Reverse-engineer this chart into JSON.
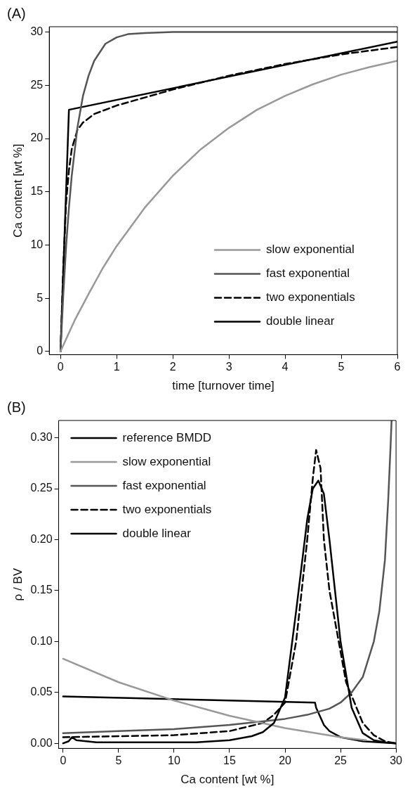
{
  "chart_data": [
    {
      "type": "line",
      "annotations": [
        "(A)"
      ],
      "xlabel": "time [turnover time]",
      "ylabel": "Ca content [wt %]",
      "xlim": [
        -0.2,
        6
      ],
      "ylim": [
        -0.3,
        30.5
      ],
      "xticks": [
        0,
        1,
        2,
        3,
        4,
        5,
        6
      ],
      "yticks": [
        0,
        5,
        10,
        15,
        20,
        25,
        30
      ],
      "grid": false,
      "legend": "bottom right",
      "series": [
        {
          "name": "slow exponential",
          "color": "#999999",
          "line_style": "solid",
          "x": [
            0,
            0.25,
            0.5,
            0.75,
            1,
            1.5,
            2,
            2.5,
            3,
            3.5,
            4,
            4.5,
            5,
            5.5,
            6
          ],
          "values": [
            0,
            2.9,
            5.4,
            7.8,
            9.9,
            13.5,
            16.5,
            19,
            21,
            22.7,
            24,
            25.1,
            26,
            26.7,
            27.3
          ]
        },
        {
          "name": "fast exponential",
          "color": "#555555",
          "line_style": "solid",
          "x": [
            0,
            0.05,
            0.1,
            0.15,
            0.2,
            0.3,
            0.4,
            0.5,
            0.6,
            0.8,
            1,
            1.2,
            1.5,
            2,
            3,
            4,
            5,
            6
          ],
          "values": [
            0,
            5.4,
            9.9,
            13.5,
            16.5,
            21,
            24,
            25.9,
            27.3,
            28.9,
            29.5,
            29.8,
            29.9,
            30,
            30,
            30,
            30,
            30
          ]
        },
        {
          "name": "two exponentials",
          "color": "#000000",
          "line_style": "dashed",
          "x": [
            0,
            0.05,
            0.1,
            0.15,
            0.2,
            0.3,
            0.4,
            0.6,
            1,
            2,
            3,
            4,
            5,
            6
          ],
          "values": [
            0,
            8,
            14,
            17,
            19,
            20.8,
            21.5,
            22.3,
            23.1,
            24.6,
            25.9,
            27,
            27.9,
            28.6
          ]
        },
        {
          "name": "double linear",
          "color": "#000000",
          "line_style": "solid",
          "x": [
            0,
            0.15,
            6
          ],
          "values": [
            0,
            22.7,
            29.1
          ]
        }
      ]
    },
    {
      "type": "line",
      "annotations": [
        "(B)"
      ],
      "xlabel": "Ca content [wt %]",
      "ylabel": "ρ / BV",
      "xlim": [
        -0.4,
        30
      ],
      "ylim": [
        -0.005,
        0.317
      ],
      "xticks": [
        0,
        5,
        10,
        15,
        20,
        25,
        30
      ],
      "yticks": [
        {
          "value": 0,
          "label": "0.00"
        },
        {
          "value": 0.05,
          "label": "0.05"
        },
        {
          "value": 0.1,
          "label": "0.10"
        },
        {
          "value": 0.15,
          "label": "0.15"
        },
        {
          "value": 0.2,
          "label": "0.20"
        },
        {
          "value": 0.25,
          "label": "0.25"
        },
        {
          "value": 0.3,
          "label": "0.30"
        }
      ],
      "grid": false,
      "legend": "top left",
      "series": [
        {
          "name": "reference BMDD",
          "color": "#000000",
          "line_style": "solid",
          "x": [
            0,
            0.5,
            0.8,
            1.2,
            3,
            8,
            12,
            15,
            17,
            18,
            19,
            20,
            21,
            22,
            22.5,
            23,
            23.5,
            24,
            25,
            26,
            27,
            28,
            29,
            30
          ],
          "values": [
            0,
            0.002,
            0.006,
            0.003,
            0.001,
            0.001,
            0.001,
            0.003,
            0.007,
            0.011,
            0.02,
            0.045,
            0.13,
            0.22,
            0.25,
            0.258,
            0.245,
            0.2,
            0.1,
            0.035,
            0.01,
            0.003,
            0.001,
            0
          ]
        },
        {
          "name": "slow exponential",
          "color": "#999999",
          "line_style": "solid",
          "x": [
            0,
            5,
            10,
            15,
            20,
            25,
            27.3
          ],
          "values": [
            0.083,
            0.06,
            0.042,
            0.027,
            0.015,
            0.006,
            0.003
          ]
        },
        {
          "name": "fast exponential",
          "color": "#555555",
          "line_style": "solid",
          "x": [
            0,
            5,
            10,
            15,
            20,
            22,
            24,
            25,
            26,
            27,
            28,
            28.5,
            29,
            29.3,
            29.5,
            29.6
          ],
          "values": [
            0.01,
            0.012,
            0.014,
            0.018,
            0.024,
            0.028,
            0.034,
            0.04,
            0.05,
            0.065,
            0.1,
            0.13,
            0.18,
            0.24,
            0.29,
            0.317
          ]
        },
        {
          "name": "two exponentials",
          "color": "#000000",
          "line_style": "dashed",
          "x": [
            0,
            5,
            10,
            15,
            18,
            19,
            20,
            21,
            22,
            22.5,
            22.8,
            23.2,
            23.5,
            24,
            24.5,
            25.5,
            27,
            28,
            29,
            30
          ],
          "values": [
            0.006,
            0.007,
            0.008,
            0.012,
            0.02,
            0.028,
            0.04,
            0.1,
            0.2,
            0.26,
            0.288,
            0.27,
            0.2,
            0.15,
            0.12,
            0.06,
            0.02,
            0.008,
            0.002,
            0
          ]
        },
        {
          "name": "double linear",
          "color": "#000000",
          "line_style": "solid",
          "x": [
            0,
            22.7,
            22.8,
            23.5,
            24,
            25,
            27,
            30
          ],
          "values": [
            0.046,
            0.04,
            0.035,
            0.018,
            0.012,
            0.006,
            0.002,
            0
          ]
        }
      ]
    }
  ]
}
